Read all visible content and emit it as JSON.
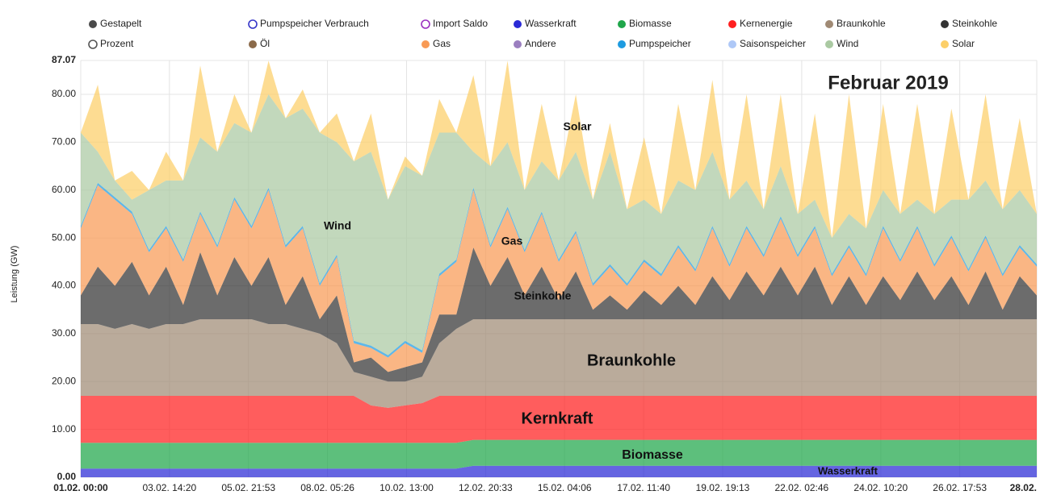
{
  "chart_data": {
    "type": "stacked_area",
    "title": "Februar 2019",
    "y_label": "Leistung (GW)",
    "xlim": [
      0,
      672
    ],
    "xticks": [
      {
        "value": 0,
        "label": "01.02. 00:00"
      },
      {
        "value": 62.33,
        "label": "03.02. 14:20"
      },
      {
        "value": 117.88,
        "label": "05.02. 21:53"
      },
      {
        "value": 173.43,
        "label": "08.02. 05:26"
      },
      {
        "value": 229,
        "label": "10.02. 13:00"
      },
      {
        "value": 284.55,
        "label": "12.02. 20:33"
      },
      {
        "value": 340.1,
        "label": "15.02. 04:06"
      },
      {
        "value": 395.67,
        "label": "17.02. 11:40"
      },
      {
        "value": 451.22,
        "label": "19.02. 19:13"
      },
      {
        "value": 506.77,
        "label": "22.02. 02:46"
      },
      {
        "value": 562.33,
        "label": "24.02. 10:20"
      },
      {
        "value": 617.88,
        "label": "26.02. 17:53"
      },
      {
        "value": 672,
        "label": "28.02."
      }
    ],
    "ylim": [
      0,
      87.07
    ],
    "yticks": [
      {
        "value": 0,
        "label": "0.00"
      },
      {
        "value": 10,
        "label": "10.00"
      },
      {
        "value": 20,
        "label": "20.00"
      },
      {
        "value": 30,
        "label": "30.00"
      },
      {
        "value": 40,
        "label": "40.00"
      },
      {
        "value": 50,
        "label": "50.00"
      },
      {
        "value": 60,
        "label": "60.00"
      },
      {
        "value": 70,
        "label": "70.00"
      },
      {
        "value": 80,
        "label": "80.00"
      },
      {
        "value": 87.07,
        "label": "87.07"
      }
    ],
    "grid": true,
    "x": [
      0,
      12,
      24,
      36,
      48,
      60,
      72,
      84,
      96,
      108,
      120,
      132,
      144,
      156,
      168,
      180,
      192,
      204,
      216,
      228,
      240,
      252,
      264,
      276,
      288,
      300,
      312,
      324,
      336,
      348,
      360,
      372,
      384,
      396,
      408,
      420,
      432,
      444,
      456,
      468,
      480,
      492,
      504,
      516,
      528,
      540,
      552,
      564,
      576,
      588,
      600,
      612,
      624,
      636,
      648,
      660,
      672
    ],
    "series": [
      {
        "name": "Gestapelt",
        "color": "#4a4a4a"
      },
      {
        "name": "Pumpspeicher Verbrauch",
        "color": "#3535c8",
        "marker": "hollow"
      },
      {
        "name": "Import Saldo",
        "color": "#9b30c0",
        "marker": "hollow"
      },
      {
        "name": "Wasserkraft",
        "color": "#2a2ad6",
        "values": [
          1.8,
          1.8,
          1.8,
          1.8,
          1.8,
          1.8,
          1.8,
          1.8,
          1.8,
          1.8,
          1.8,
          1.8,
          1.8,
          1.8,
          1.8,
          1.8,
          1.8,
          1.8,
          1.8,
          1.8,
          1.8,
          1.8,
          1.8,
          2.4,
          2.4,
          2.4,
          2.4,
          2.4,
          2.4,
          2.4,
          2.4,
          2.4,
          2.4,
          2.4,
          2.4,
          2.4,
          2.4,
          2.4,
          2.4,
          2.4,
          2.4,
          2.4,
          2.4,
          2.4,
          2.4,
          2.4,
          2.4,
          2.4,
          2.4,
          2.4,
          2.4,
          2.4,
          2.4,
          2.4,
          2.4,
          2.4,
          2.4
        ]
      },
      {
        "name": "Biomasse",
        "color": "#1fa64a",
        "values": [
          5.4,
          5.4,
          5.4,
          5.4,
          5.4,
          5.4,
          5.4,
          5.4,
          5.4,
          5.4,
          5.4,
          5.4,
          5.4,
          5.4,
          5.4,
          5.4,
          5.4,
          5.4,
          5.4,
          5.4,
          5.4,
          5.4,
          5.4,
          5.4,
          5.4,
          5.4,
          5.4,
          5.4,
          5.4,
          5.4,
          5.4,
          5.4,
          5.4,
          5.4,
          5.4,
          5.4,
          5.4,
          5.4,
          5.4,
          5.4,
          5.4,
          5.4,
          5.4,
          5.4,
          5.4,
          5.4,
          5.4,
          5.4,
          5.4,
          5.4,
          5.4,
          5.4,
          5.4,
          5.4,
          5.4,
          5.4,
          5.4
        ]
      },
      {
        "name": "Kernenergie",
        "color": "#ff1f1f",
        "values": [
          9.8,
          9.8,
          9.8,
          9.8,
          9.8,
          9.8,
          9.8,
          9.8,
          9.8,
          9.8,
          9.8,
          9.8,
          9.8,
          9.8,
          9.8,
          9.8,
          9.8,
          7.8,
          7.3,
          7.8,
          8.3,
          9.8,
          9.8,
          9.2,
          9.2,
          9.2,
          9.2,
          9.2,
          9.2,
          9.2,
          9.2,
          9.2,
          9.2,
          9.2,
          9.2,
          9.2,
          9.2,
          9.2,
          9.2,
          9.2,
          9.2,
          9.2,
          9.2,
          9.2,
          9.2,
          9.2,
          9.2,
          9.2,
          9.2,
          9.2,
          9.2,
          9.2,
          9.2,
          9.2,
          9.2,
          9.2,
          9.2
        ]
      },
      {
        "name": "Braunkohle",
        "color": "#a08a74",
        "values": [
          15,
          15,
          14,
          15,
          14,
          15,
          15,
          16,
          16,
          16,
          16,
          15,
          15,
          14,
          13,
          11,
          5,
          6,
          5.5,
          5,
          5.5,
          11,
          14,
          16,
          16,
          16,
          16,
          16,
          16,
          16,
          16,
          16,
          16,
          16,
          16,
          16,
          16,
          16,
          16,
          16,
          16,
          16,
          16,
          16,
          16,
          16,
          16,
          16,
          16,
          16,
          16,
          16,
          16,
          16,
          16,
          16,
          16
        ]
      },
      {
        "name": "Steinkohle",
        "color": "#333333",
        "values": [
          6,
          12,
          9,
          13,
          7,
          12,
          4,
          14,
          5,
          13,
          7,
          14,
          4,
          11,
          3,
          10,
          2,
          4,
          2,
          3,
          3,
          6,
          3,
          15,
          7,
          13,
          5,
          11,
          4,
          10,
          2,
          5,
          2,
          6,
          3,
          7,
          3,
          9,
          4,
          10,
          5,
          11,
          5,
          11,
          3,
          9,
          3,
          9,
          4,
          10,
          4,
          9,
          3,
          10,
          2,
          9,
          5
        ]
      },
      {
        "name": "Prozent",
        "color": "#555555",
        "marker": "hollow"
      },
      {
        "name": "Öl",
        "color": "#8b6a4a"
      },
      {
        "name": "Gas",
        "color": "#f89a55",
        "values": [
          14,
          17,
          18,
          10,
          9,
          8,
          9,
          8,
          10,
          12,
          12,
          14,
          12,
          10,
          7,
          8,
          4,
          2,
          3,
          5,
          2,
          8,
          11,
          12,
          8,
          10,
          9,
          11,
          8,
          8,
          5,
          6,
          5,
          6,
          6,
          8,
          7,
          10,
          7,
          9,
          8,
          10,
          8,
          8,
          6,
          6,
          6,
          10,
          8,
          9,
          7,
          8,
          7,
          7,
          7,
          6,
          6
        ]
      },
      {
        "name": "Andere",
        "color": "#9b7fc0"
      },
      {
        "name": "Pumpspeicher",
        "color": "#1e9be0",
        "values": [
          0.5,
          0.5,
          0.5,
          0.5,
          0.5,
          0.5,
          0.5,
          0.5,
          0.5,
          0.5,
          0.5,
          0.5,
          0.5,
          0.5,
          0.5,
          0.5,
          0.5,
          0.5,
          0.5,
          0.5,
          0.5,
          0.5,
          0.5,
          0.5,
          0.5,
          0.5,
          0.5,
          0.5,
          0.5,
          0.5,
          0.5,
          0.5,
          0.5,
          0.5,
          0.5,
          0.5,
          0.5,
          0.5,
          0.5,
          0.5,
          0.5,
          0.5,
          0.5,
          0.5,
          0.5,
          0.5,
          0.5,
          0.5,
          0.5,
          0.5,
          0.5,
          0.5,
          0.5,
          0.5,
          0.5,
          0.5,
          0.5
        ]
      },
      {
        "name": "Saisonspeicher",
        "color": "#aec8f7"
      },
      {
        "name": "Wind",
        "color": "#aac9a2",
        "values": [
          19.5,
          6.5,
          3.5,
          2.5,
          12.5,
          9.5,
          16.5,
          15.5,
          19.5,
          15.5,
          19.5,
          19.5,
          26.5,
          24.5,
          31.5,
          23.5,
          37.5,
          40.5,
          32.5,
          36.5,
          36.5,
          29.5,
          26.5,
          7.5,
          16.5,
          13.5,
          12.5,
          10.5,
          16.5,
          16.5,
          17.5,
          23.5,
          15.5,
          12.5,
          12.5,
          13.5,
          16.5,
          15.5,
          13.5,
          9.5,
          9.5,
          10.5,
          8.5,
          5.5,
          7.5,
          6.5,
          9.5,
          7.5,
          9.5,
          5.5,
          10.5,
          7.5,
          14.5,
          11.5,
          13.5,
          11.5,
          10.5
        ]
      },
      {
        "name": "Solar",
        "color": "#fccf68",
        "values": [
          0,
          14,
          0,
          6,
          0,
          6,
          0,
          15,
          0,
          6,
          0,
          7,
          0,
          4,
          0,
          6,
          0,
          8,
          0,
          2,
          0,
          7,
          0,
          16,
          0,
          17,
          0,
          12,
          0,
          12,
          0,
          6,
          0,
          13,
          0,
          16,
          0,
          15,
          0,
          18,
          0,
          15,
          0,
          18,
          0,
          25,
          0,
          18,
          0,
          20,
          0,
          19,
          0,
          18,
          0,
          15,
          0
        ]
      }
    ],
    "annotations": [
      "Solar",
      "Wind",
      "Gas",
      "Steinkohle",
      "Braunkohle",
      "Kernkraft",
      "Biomasse",
      "Wasserkraft"
    ]
  }
}
